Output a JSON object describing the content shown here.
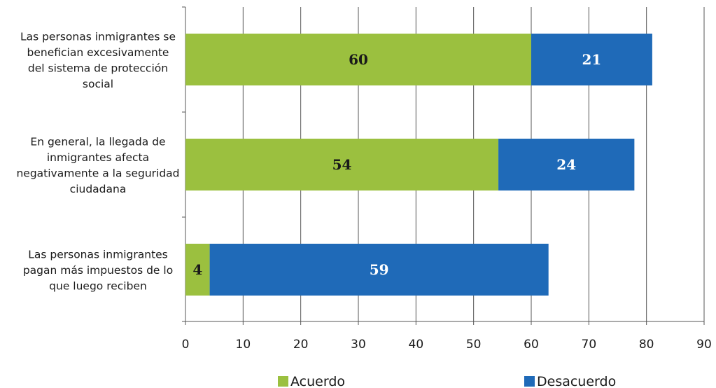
{
  "chart_data": {
    "type": "bar",
    "orientation": "horizontal",
    "stacked": true,
    "categories": [
      [
        "Las personas inmigrantes se",
        "benefician excesivamente",
        "del sistema de protección",
        "social"
      ],
      [
        "En general, la llegada de",
        "inmigrantes afecta",
        "negativamente a la seguridad",
        "ciudadana"
      ],
      [
        "Las personas inmigrantes",
        "pagan más impuestos de lo",
        "que luego reciben"
      ]
    ],
    "series": [
      {
        "name": "Acuerdo",
        "color": "#9bc03f",
        "values": [
          60,
          54.3,
          4.2
        ],
        "labels": [
          "60",
          "54",
          "4"
        ],
        "label_color": "#1a1a1a"
      },
      {
        "name": "Desacuerdo",
        "color": "#1f6ab8",
        "values": [
          21,
          23.6,
          58.8
        ],
        "labels": [
          "21",
          "24",
          "59"
        ],
        "label_color": "#ffffff"
      }
    ],
    "xlim": [
      0,
      90
    ],
    "xticks": [
      0,
      10,
      20,
      30,
      40,
      50,
      60,
      70,
      80,
      90
    ],
    "grid": true,
    "legend_position": "bottom"
  }
}
